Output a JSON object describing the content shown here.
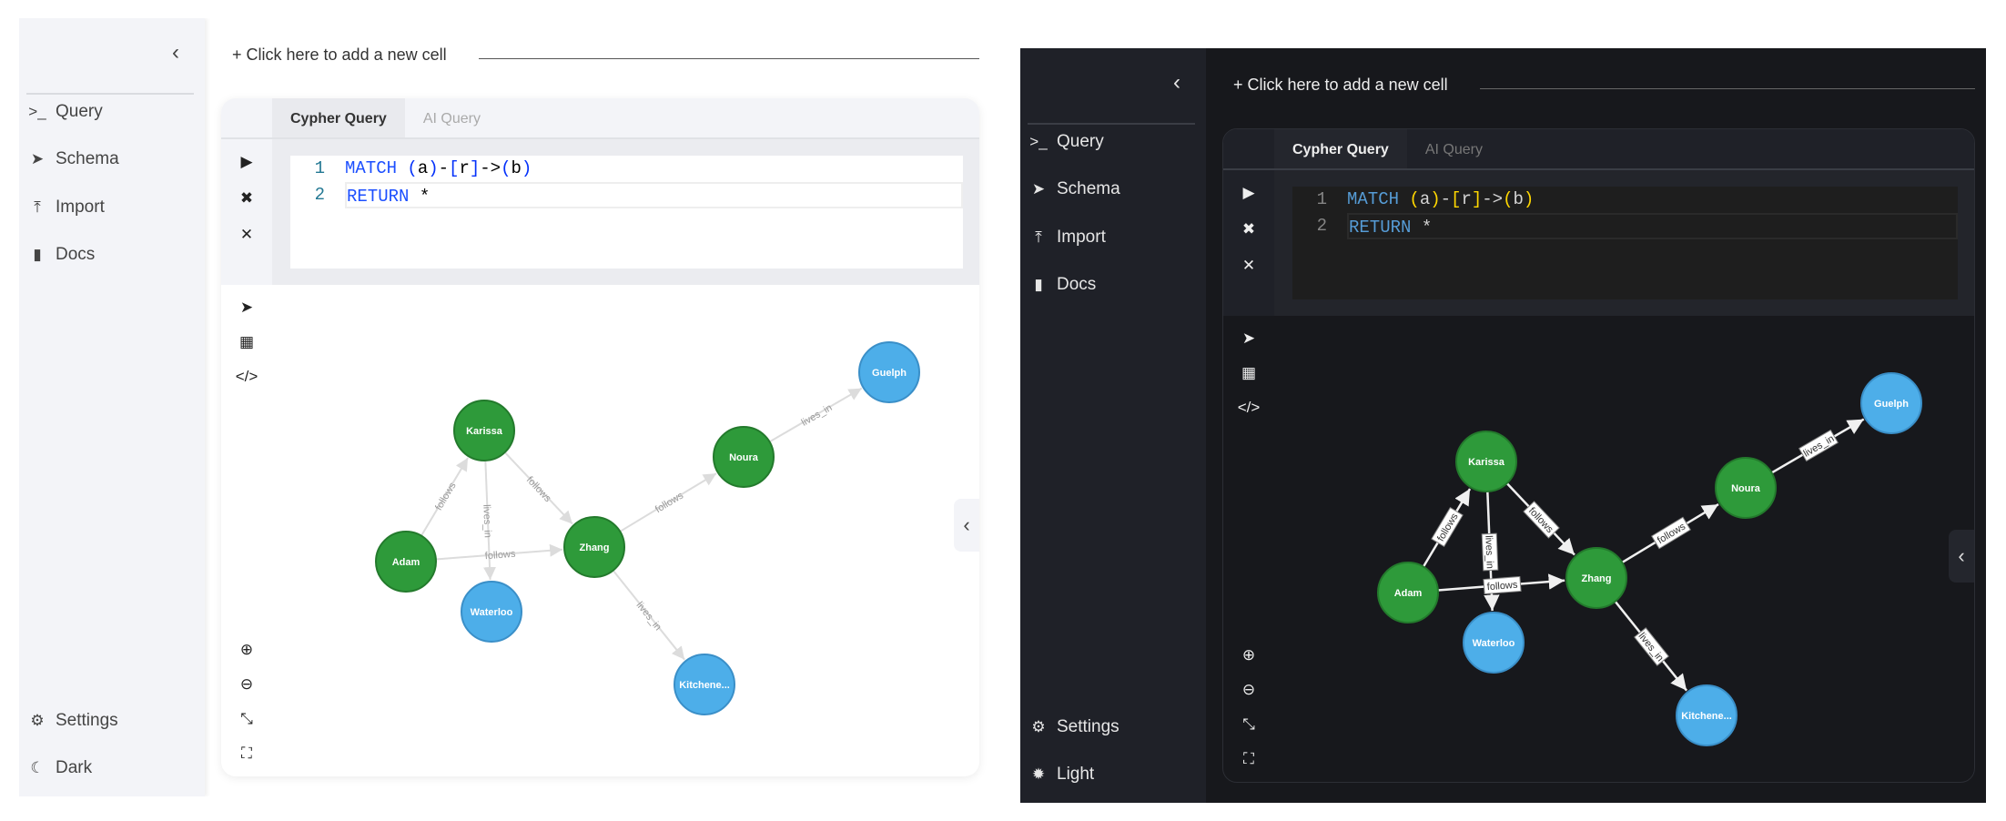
{
  "panels": [
    {
      "theme": "light",
      "sidebar": {
        "collapse_icon": "chevron-left-icon",
        "items": [
          {
            "icon": "terminal-icon",
            "label": "Query"
          },
          {
            "icon": "send-icon",
            "label": "Schema"
          },
          {
            "icon": "upload-icon",
            "label": "Import"
          },
          {
            "icon": "book-icon",
            "label": "Docs"
          }
        ],
        "settings": "Settings",
        "theme_toggle": "Dark",
        "theme_icon": "moon-icon"
      },
      "add_cell": "+ Click here to add a new cell",
      "tabs": [
        "Cypher Query",
        "AI Query"
      ],
      "code": {
        "line1": "1",
        "line2": "2",
        "match": "MATCH",
        "p1": "(",
        "a": "a",
        ")1": ")",
        "dash": "-",
        "b1": "[",
        "r": "r",
        "b2": "]",
        "arrow": "->",
        "p3": "(",
        "b": "b",
        "p4": ")",
        "ret": "RETURN",
        "star": "*"
      }
    },
    {
      "theme": "dark",
      "sidebar": {
        "collapse_icon": "chevron-left-icon",
        "items": [
          {
            "icon": "terminal-icon",
            "label": "Query"
          },
          {
            "icon": "send-icon",
            "label": "Schema"
          },
          {
            "icon": "upload-icon",
            "label": "Import"
          },
          {
            "icon": "book-icon",
            "label": "Docs"
          }
        ],
        "settings": "Settings",
        "theme_toggle": "Light",
        "theme_icon": "sun-icon"
      },
      "add_cell": "+ Click here to add a new cell",
      "tabs": [
        "Cypher Query",
        "AI Query"
      ],
      "code": {
        "line1": "1",
        "line2": "2",
        "match": "MATCH",
        "p1": "(",
        "a": "a",
        ")1": ")",
        "dash": "-",
        "b1": "[",
        "r": "r",
        "b2": "]",
        "arrow": "->",
        "p3": "(",
        "b": "b",
        "p4": ")",
        "ret": "RETURN",
        "star": "*"
      }
    }
  ],
  "graph": {
    "nodes": [
      {
        "id": "Karissa",
        "label": "Karissa",
        "type": "person"
      },
      {
        "id": "Adam",
        "label": "Adam",
        "type": "person"
      },
      {
        "id": "Zhang",
        "label": "Zhang",
        "type": "person"
      },
      {
        "id": "Waterloo",
        "label": "Waterloo",
        "type": "city"
      },
      {
        "id": "Noura",
        "label": "Noura",
        "type": "person"
      },
      {
        "id": "Guelph",
        "label": "Guelph",
        "type": "city"
      },
      {
        "id": "Kitchener",
        "label": "Kitchene...",
        "type": "city"
      }
    ],
    "edges": [
      {
        "from": "Adam",
        "to": "Karissa",
        "label": "follows"
      },
      {
        "from": "Karissa",
        "to": "Zhang",
        "label": "follows"
      },
      {
        "from": "Karissa",
        "to": "Waterloo",
        "label": "lives_in"
      },
      {
        "from": "Adam",
        "to": "Zhang",
        "label": "follows"
      },
      {
        "from": "Zhang",
        "to": "Noura",
        "label": "follows"
      },
      {
        "from": "Noura",
        "to": "Guelph",
        "label": "lives_in"
      },
      {
        "from": "Zhang",
        "to": "Kitchener",
        "label": "lives_in"
      }
    ],
    "colors": {
      "person": "#2e9a3a",
      "person_border": "#237a2c",
      "city": "#4daee9",
      "city_border": "#3a8fc8"
    }
  }
}
